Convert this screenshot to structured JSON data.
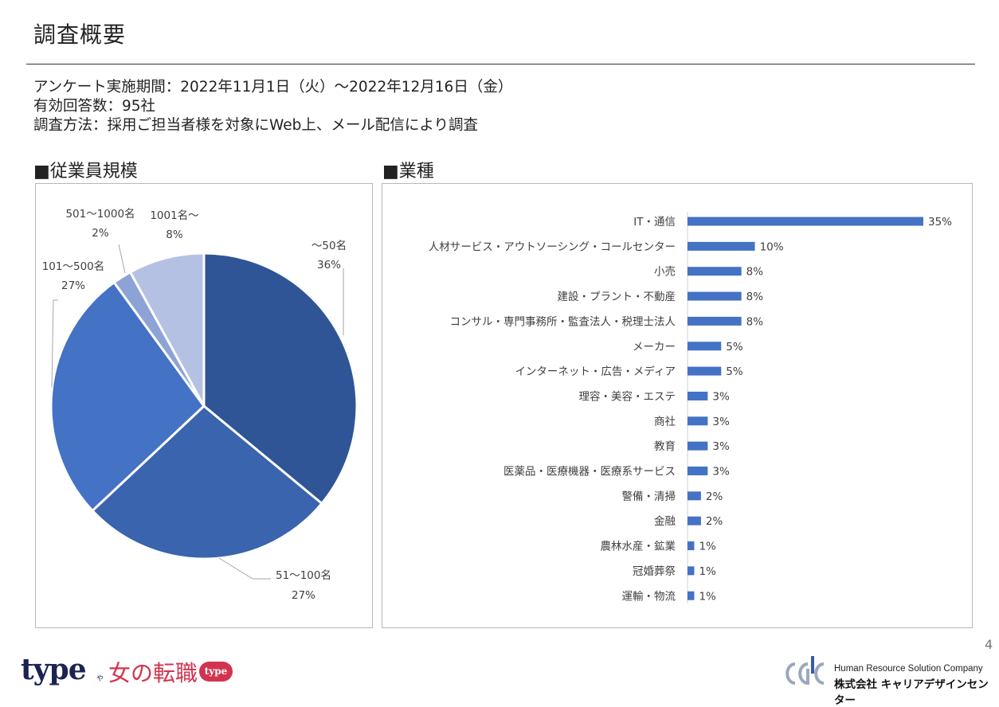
{
  "header": {
    "title": "調査概要"
  },
  "survey": {
    "period": "アンケート実施期間：2022年11月1日（火）～2022年12月16日（金）",
    "responses": "有効回答数：95社",
    "method": "調査方法：採用ご担当者様を対象にWeb上、メール配信により調査"
  },
  "sections": {
    "employees": "■従業員規模",
    "industry": "■業種"
  },
  "chart_data": [
    {
      "type": "pie",
      "categories": [
        "～50名",
        "51～100名",
        "101～500名",
        "501～1000名",
        "1001名～"
      ],
      "values": [
        36,
        27,
        27,
        2,
        8
      ],
      "value_labels": [
        "36%",
        "27%",
        "27%",
        "2%",
        "8%"
      ],
      "colors": [
        "#2f5597",
        "#3a64ad",
        "#4472c4",
        "#8da3d6",
        "#b4c1e2"
      ]
    },
    {
      "type": "bar",
      "orientation": "horizontal",
      "categories": [
        "IT・通信",
        "人材サービス・アウトソーシング・コールセンター",
        "小売",
        "建設・プラント・不動産",
        "コンサル・専門事務所・監査法人・税理士法人",
        "メーカー",
        "インターネット・広告・メディア",
        "理容・美容・エステ",
        "商社",
        "教育",
        "医薬品・医療機器・医療系サービス",
        "警備・清掃",
        "金融",
        "農林水産・鉱業",
        "冠婚葬祭",
        "運輸・物流"
      ],
      "values": [
        35,
        10,
        8,
        8,
        8,
        5,
        5,
        3,
        3,
        3,
        3,
        2,
        2,
        1,
        1,
        1
      ],
      "value_labels": [
        "35%",
        "10%",
        "8%",
        "8%",
        "8%",
        "5%",
        "5%",
        "3%",
        "3%",
        "3%",
        "3%",
        "2%",
        "2%",
        "1%",
        "1%",
        "1%"
      ],
      "color": "#4472c4"
    }
  ],
  "footer": {
    "page_number": "4",
    "logo_type": "type",
    "logo_ya": "や",
    "logo_onna": "女の転職",
    "logo_badge": "type",
    "company_en": "Human Resource Solution Company",
    "company_jp": "株式会社 キャリアデザインセンター"
  }
}
